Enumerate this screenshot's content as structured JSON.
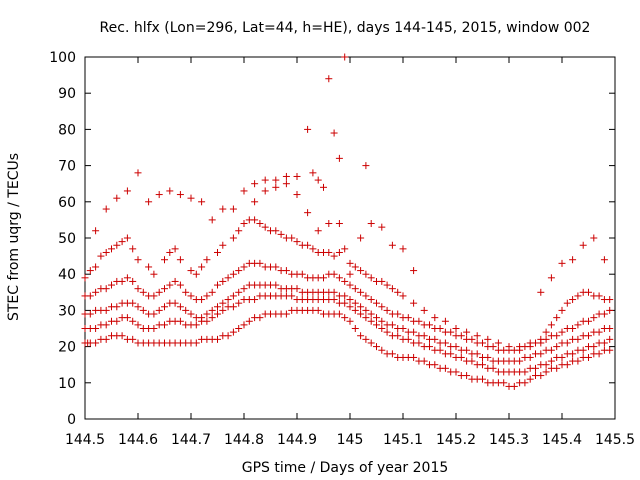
{
  "chart_data": {
    "type": "scatter",
    "title": "Rec. hlfx (Lon=296, Lat=44, h=HE), days 144-145, 2015, window 002",
    "xlabel": "GPS time / Days of year 2015",
    "ylabel": "STEC from uqrg / TECUs",
    "xlim": [
      144.5,
      145.5
    ],
    "ylim": [
      0,
      100
    ],
    "xticks": [
      144.5,
      144.6,
      144.7,
      144.8,
      144.9,
      145,
      145.1,
      145.2,
      145.3,
      145.4,
      145.5
    ],
    "xtick_labels": [
      "144.5",
      "144.6",
      "144.7",
      "144.8",
      "144.9",
      "145",
      "145.1",
      "145.2",
      "145.3",
      "145.4",
      "145.5"
    ],
    "yticks": [
      0,
      10,
      20,
      30,
      40,
      50,
      60,
      70,
      80,
      90,
      100
    ],
    "ytick_labels": [
      "0",
      "10",
      "20",
      "30",
      "40",
      "50",
      "60",
      "70",
      "80",
      "90",
      "100"
    ],
    "marker": "+",
    "color": "#cc0000",
    "grid": false,
    "series": [
      {
        "x": [
          144.5,
          144.505,
          144.51,
          144.52,
          144.53,
          144.54,
          144.55,
          144.56,
          144.57,
          144.58,
          144.59,
          144.6,
          144.61,
          144.62,
          144.63,
          144.64,
          144.65,
          144.66,
          144.67,
          144.68,
          144.69,
          144.7,
          144.71,
          144.72,
          144.73,
          144.74,
          144.75,
          144.76,
          144.77,
          144.78,
          144.79,
          144.8,
          144.81,
          144.82,
          144.83,
          144.84,
          144.85,
          144.86,
          144.87,
          144.88,
          144.89,
          144.9,
          144.91,
          144.92,
          144.93,
          144.94,
          144.95,
          144.96,
          144.97,
          144.98,
          144.99,
          145.0,
          145.01,
          145.02,
          145.03,
          145.04,
          145.05,
          145.06,
          145.07,
          145.08,
          145.09,
          145.1,
          145.11,
          145.12,
          145.13,
          145.14,
          145.15,
          145.16,
          145.17,
          145.18,
          145.19,
          145.2,
          145.21,
          145.22,
          145.23,
          145.24,
          145.25,
          145.26,
          145.27,
          145.28,
          145.29,
          145.3,
          145.31,
          145.32,
          145.33,
          145.34,
          145.35,
          145.36,
          145.37,
          145.38,
          145.39,
          145.4,
          145.41,
          145.42,
          145.43,
          145.44,
          145.45,
          145.46,
          145.47,
          145.48,
          145.49
        ],
        "y": [
          21,
          21,
          21,
          21,
          22,
          22,
          23,
          23,
          23,
          22,
          22,
          21,
          21,
          21,
          21,
          21,
          21,
          21,
          21,
          21,
          21,
          21,
          21,
          22,
          22,
          22,
          22,
          23,
          23,
          24,
          25,
          26,
          27,
          28,
          28,
          29,
          29,
          29,
          29,
          29,
          30,
          30,
          30,
          30,
          30,
          30,
          29,
          29,
          29,
          29,
          28,
          27,
          25,
          23,
          22,
          21,
          20,
          19,
          18,
          18,
          17,
          17,
          17,
          17,
          16,
          16,
          15,
          15,
          14,
          14,
          13,
          13,
          12,
          12,
          11,
          11,
          11,
          10,
          10,
          10,
          10,
          9,
          9,
          10,
          10,
          11,
          12,
          12,
          13,
          14,
          14,
          15,
          15,
          16,
          16,
          17,
          17,
          18,
          18,
          19,
          19
        ]
      },
      {
        "x": [
          144.5,
          144.51,
          144.52,
          144.53,
          144.54,
          144.55,
          144.56,
          144.57,
          144.58,
          144.59,
          144.6,
          144.61,
          144.62,
          144.63,
          144.64,
          144.65,
          144.66,
          144.67,
          144.68,
          144.69,
          144.7,
          144.71,
          144.72,
          144.73,
          144.74,
          144.75,
          144.76,
          144.77,
          144.78,
          144.79,
          144.8,
          144.81,
          144.82,
          144.83,
          144.84,
          144.85,
          144.86,
          144.87,
          144.88,
          144.89,
          144.9,
          144.91,
          144.92,
          144.93,
          144.94,
          144.95,
          144.96,
          144.97,
          144.98,
          144.99,
          145.0,
          145.01,
          145.02,
          145.03,
          145.04,
          145.05,
          145.06,
          145.07,
          145.08,
          145.09,
          145.1,
          145.11,
          145.12,
          145.13,
          145.14,
          145.15,
          145.16,
          145.17,
          145.18,
          145.19,
          145.2,
          145.21,
          145.22,
          145.23,
          145.24,
          145.25,
          145.26,
          145.27,
          145.28,
          145.29,
          145.3,
          145.31,
          145.32,
          145.33,
          145.34,
          145.35,
          145.36,
          145.37,
          145.38,
          145.39,
          145.4,
          145.41,
          145.42,
          145.43,
          145.44,
          145.45,
          145.46,
          145.47,
          145.48,
          145.49
        ],
        "y": [
          25,
          25,
          25,
          26,
          26,
          27,
          27,
          28,
          28,
          27,
          26,
          25,
          25,
          25,
          26,
          26,
          27,
          27,
          27,
          26,
          26,
          26,
          27,
          27,
          28,
          29,
          30,
          31,
          31,
          32,
          33,
          33,
          33,
          34,
          34,
          34,
          34,
          34,
          34,
          34,
          33,
          33,
          33,
          33,
          33,
          33,
          33,
          33,
          32,
          32,
          31,
          30,
          29,
          28,
          27,
          26,
          25,
          24,
          23,
          23,
          22,
          22,
          21,
          21,
          20,
          20,
          19,
          19,
          18,
          18,
          17,
          17,
          16,
          16,
          15,
          15,
          14,
          14,
          13,
          13,
          13,
          13,
          13,
          13,
          14,
          14,
          15,
          15,
          16,
          17,
          17,
          18,
          18,
          19,
          19,
          20,
          20,
          21,
          21,
          22
        ]
      },
      {
        "x": [
          144.5,
          144.51,
          144.52,
          144.53,
          144.54,
          144.55,
          144.56,
          144.57,
          144.58,
          144.59,
          144.6,
          144.61,
          144.62,
          144.63,
          144.64,
          144.65,
          144.66,
          144.67,
          144.68,
          144.69,
          144.7,
          144.71,
          144.72,
          144.73,
          144.74,
          144.75,
          144.76,
          144.77,
          144.78,
          144.79,
          144.8,
          144.81,
          144.82,
          144.83,
          144.84,
          144.85,
          144.86,
          144.87,
          144.88,
          144.89,
          144.9,
          144.91,
          144.92,
          144.93,
          144.94,
          144.95,
          144.96,
          144.97,
          144.98,
          144.99,
          145.0,
          145.01,
          145.02,
          145.03,
          145.04,
          145.05,
          145.06,
          145.07,
          145.08,
          145.09,
          145.1,
          145.11,
          145.12,
          145.13,
          145.14,
          145.15,
          145.16,
          145.17,
          145.18,
          145.19,
          145.2,
          145.21,
          145.22,
          145.23,
          145.24,
          145.25,
          145.26,
          145.27,
          145.28,
          145.29,
          145.3,
          145.31,
          145.32,
          145.33,
          145.34,
          145.35,
          145.36,
          145.37,
          145.38,
          145.39,
          145.4,
          145.41,
          145.42,
          145.43,
          145.44,
          145.45,
          145.46,
          145.47,
          145.48,
          145.49
        ],
        "y": [
          29,
          29,
          30,
          30,
          30,
          31,
          31,
          32,
          32,
          32,
          31,
          30,
          29,
          29,
          30,
          31,
          32,
          32,
          31,
          30,
          29,
          28,
          28,
          29,
          30,
          31,
          32,
          33,
          34,
          35,
          36,
          37,
          37,
          37,
          37,
          37,
          37,
          36,
          36,
          36,
          36,
          35,
          35,
          35,
          35,
          35,
          35,
          35,
          34,
          34,
          33,
          32,
          31,
          30,
          29,
          28,
          27,
          26,
          26,
          25,
          25,
          24,
          24,
          23,
          23,
          22,
          22,
          21,
          21,
          20,
          20,
          19,
          19,
          18,
          18,
          17,
          17,
          16,
          16,
          16,
          16,
          16,
          16,
          17,
          17,
          18,
          18,
          19,
          19,
          20,
          21,
          21,
          22,
          22,
          23,
          23,
          24,
          24,
          25,
          25
        ]
      },
      {
        "x": [
          144.5,
          144.51,
          144.52,
          144.53,
          144.54,
          144.55,
          144.56,
          144.57,
          144.58,
          144.59,
          144.6,
          144.61,
          144.62,
          144.63,
          144.64,
          144.65,
          144.66,
          144.67,
          144.68,
          144.69,
          144.7,
          144.71,
          144.72,
          144.73,
          144.74,
          144.75,
          144.76,
          144.77,
          144.78,
          144.79,
          144.8,
          144.81,
          144.82,
          144.83,
          144.84,
          144.85,
          144.86,
          144.87,
          144.88,
          144.89,
          144.9,
          144.91,
          144.92,
          144.93,
          144.94,
          144.95,
          144.96,
          144.97,
          144.98,
          144.99,
          145.0,
          145.01,
          145.02,
          145.03,
          145.04,
          145.05,
          145.06,
          145.07,
          145.08,
          145.09,
          145.1,
          145.11,
          145.12,
          145.13,
          145.14,
          145.15,
          145.16,
          145.17,
          145.18,
          145.19,
          145.2,
          145.21,
          145.22,
          145.23,
          145.24,
          145.25,
          145.26,
          145.27,
          145.28,
          145.29,
          145.3,
          145.31,
          145.32,
          145.33,
          145.34,
          145.35,
          145.36,
          145.37,
          145.38,
          145.39,
          145.4,
          145.41,
          145.42,
          145.43,
          145.44,
          145.45,
          145.46,
          145.47,
          145.48,
          145.49
        ],
        "y": [
          34,
          34,
          35,
          36,
          36,
          37,
          38,
          38,
          39,
          38,
          36,
          35,
          34,
          34,
          35,
          36,
          37,
          38,
          37,
          35,
          34,
          33,
          33,
          34,
          35,
          37,
          38,
          39,
          40,
          41,
          42,
          43,
          43,
          43,
          42,
          42,
          42,
          41,
          41,
          40,
          40,
          40,
          39,
          39,
          39,
          39,
          40,
          40,
          39,
          38,
          37,
          36,
          35,
          34,
          33,
          32,
          31,
          30,
          29,
          29,
          28,
          28,
          27,
          27,
          26,
          26,
          25,
          25,
          24,
          24,
          23,
          23,
          22,
          22,
          21,
          21,
          20,
          20,
          19,
          19,
          19,
          19,
          19,
          20,
          20,
          21,
          21,
          22,
          23,
          23,
          24,
          25,
          25,
          26,
          27,
          27,
          28,
          29,
          29,
          30
        ]
      },
      {
        "x": [
          144.5,
          144.51,
          144.52,
          144.53,
          144.54,
          144.55,
          144.56,
          144.57,
          144.58,
          144.59,
          144.6,
          144.62,
          144.63,
          144.65,
          144.66,
          144.67,
          144.68,
          144.7,
          144.71,
          144.72,
          144.73,
          144.75,
          144.76,
          144.78,
          144.79,
          144.8,
          144.81,
          144.82,
          144.83,
          144.84,
          144.85,
          144.86,
          144.87,
          144.88,
          144.89,
          144.9,
          144.91,
          144.92,
          144.93,
          144.94,
          144.95,
          144.96,
          144.97,
          144.98,
          144.99,
          145.0,
          145.01,
          145.02,
          145.03,
          145.04,
          145.05,
          145.06,
          145.07,
          145.08,
          145.09,
          145.1,
          145.12,
          145.14,
          145.16,
          145.18,
          145.2,
          145.22,
          145.24,
          145.26,
          145.28,
          145.3,
          145.32,
          145.34,
          145.36,
          145.37,
          145.38,
          145.39,
          145.4,
          145.41,
          145.42,
          145.43,
          145.44,
          145.45,
          145.46,
          145.47,
          145.48,
          145.49
        ],
        "y": [
          39,
          41,
          42,
          45,
          46,
          47,
          48,
          49,
          50,
          47,
          44,
          42,
          40,
          44,
          46,
          47,
          44,
          41,
          40,
          42,
          44,
          46,
          48,
          50,
          52,
          54,
          55,
          55,
          54,
          53,
          52,
          52,
          51,
          50,
          50,
          49,
          48,
          48,
          47,
          46,
          46,
          46,
          45,
          46,
          47,
          43,
          42,
          41,
          40,
          39,
          38,
          38,
          37,
          36,
          35,
          34,
          32,
          30,
          28,
          27,
          25,
          24,
          23,
          22,
          21,
          20,
          20,
          21,
          22,
          24,
          26,
          28,
          30,
          32,
          33,
          34,
          35,
          35,
          34,
          34,
          33,
          33
        ]
      },
      {
        "x": [
          144.52,
          144.54,
          144.56,
          144.58,
          144.6,
          144.62,
          144.64,
          144.66,
          144.68,
          144.7,
          144.72,
          144.74,
          144.76,
          144.78,
          144.8,
          144.82,
          144.84,
          144.86,
          144.88,
          144.9,
          144.92,
          144.94,
          144.96,
          144.98,
          145.0,
          145.02,
          145.04,
          145.06,
          145.08,
          145.1,
          145.12,
          145.36,
          145.38,
          145.4,
          145.42,
          145.44,
          145.46,
          145.48
        ],
        "y": [
          52,
          58,
          61,
          63,
          68,
          60,
          62,
          63,
          62,
          61,
          60,
          55,
          58,
          58,
          63,
          65,
          66,
          66,
          67,
          62,
          57,
          52,
          54,
          54,
          40,
          50,
          54,
          53,
          48,
          47,
          41,
          35,
          39,
          43,
          44,
          48,
          50,
          44
        ]
      },
      {
        "x": [
          144.82,
          144.84,
          144.86,
          144.88,
          144.9,
          144.92,
          144.93,
          144.94,
          144.95,
          144.96,
          144.97,
          144.98,
          144.99,
          145.03
        ],
        "y": [
          60,
          63,
          64,
          65,
          67,
          80,
          68,
          66,
          64,
          94,
          79,
          72,
          100,
          70
        ]
      }
    ]
  }
}
